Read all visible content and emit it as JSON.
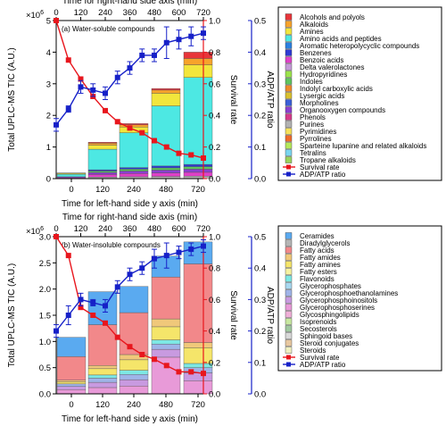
{
  "chart_data": [
    {
      "type": "bar",
      "panel_label": "(a) Water-soluble compounds",
      "xlabel_bottom": "Time for left-hand side y axis (min)",
      "xlabel_top": "Time for right-hand side axis (min)",
      "ylabel_left": "Total UPLC-MS TIC (A.U.)",
      "ylabel_right_1": "Survival rate",
      "ylabel_right_2": "ADP/ATP ratio",
      "y_exponent": "×10",
      "y_exponent_power": "6",
      "ylim_left": [
        0,
        5000000
      ],
      "ylim_survival": [
        0,
        1.0
      ],
      "ylim_adp": [
        0,
        0.5
      ],
      "xlim_top": [
        0,
        720
      ],
      "categories": [
        "0",
        "120",
        "240",
        "480",
        "720"
      ],
      "left_ticks": [
        "0",
        "1",
        "2",
        "3",
        "4",
        "5"
      ],
      "survival_ticks": [
        "0.0",
        "0.2",
        "0.4",
        "0.6",
        "0.8",
        "1.0"
      ],
      "adp_ticks": [
        "0.0",
        "0.1",
        "0.2",
        "0.3",
        "0.4",
        "0.5"
      ],
      "top_ticks": [
        "0",
        "120",
        "240",
        "360",
        "480",
        "600",
        "720"
      ],
      "legend": [
        {
          "name": "Alcohols and polyols",
          "color": "#e8353a"
        },
        {
          "name": "Alkaloids",
          "color": "#f7a32b"
        },
        {
          "name": "Amines",
          "color": "#f2e63c"
        },
        {
          "name": "Amino acids and peptides",
          "color": "#4de8e3"
        },
        {
          "name": "Aromatic heteropolycyclic compounds",
          "color": "#2a7fe0"
        },
        {
          "name": "Benzenes",
          "color": "#2d3bd4"
        },
        {
          "name": "Benzoic acids",
          "color": "#e040c8"
        },
        {
          "name": "Delta valerolactones",
          "color": "#c49ad8"
        },
        {
          "name": "Hydropyridines",
          "color": "#9be34a"
        },
        {
          "name": "Indoles",
          "color": "#5ec45e"
        },
        {
          "name": "Indolyl carboxylic acids",
          "color": "#ee8a2a"
        },
        {
          "name": "Lysergic acids",
          "color": "#d9c02e"
        },
        {
          "name": "Morpholines",
          "color": "#3a5fd8"
        },
        {
          "name": "Organooxygen compounds",
          "color": "#8a3fd0"
        },
        {
          "name": "Phenols",
          "color": "#d63a8a"
        },
        {
          "name": "Purines",
          "color": "#b2b2b2"
        },
        {
          "name": "Pyrimidines",
          "color": "#f5e15a"
        },
        {
          "name": "Pyrrolines",
          "color": "#f06a2a"
        },
        {
          "name": "Sparteine lupanine and related alkaloids",
          "color": "#b5e85a"
        },
        {
          "name": "Tetralins",
          "color": "#7ad6f0"
        },
        {
          "name": "Tropane alkaloids",
          "color": "#9ad35a"
        },
        {
          "name": "Survival rate",
          "color": "#e8161d",
          "line": true,
          "marker": "circle"
        },
        {
          "name": "ADP/ATP ratio",
          "color": "#1620c8",
          "line": true,
          "marker": "square"
        }
      ],
      "stacks": [
        [
          {
            "c": "#e040c8",
            "v": 30000
          },
          {
            "c": "#8a3fd0",
            "v": 30000
          },
          {
            "c": "#4de8e3",
            "v": 80000
          },
          {
            "c": "#f2e63c",
            "v": 30000
          },
          {
            "c": "#f7a32b",
            "v": 10000
          }
        ],
        [
          {
            "c": "#b2b2b2",
            "v": 50000
          },
          {
            "c": "#e040c8",
            "v": 80000
          },
          {
            "c": "#8a3fd0",
            "v": 60000
          },
          {
            "c": "#5ec45e",
            "v": 50000
          },
          {
            "c": "#2d3bd4",
            "v": 40000
          },
          {
            "c": "#4de8e3",
            "v": 650000
          },
          {
            "c": "#f2e63c",
            "v": 130000
          },
          {
            "c": "#f7a32b",
            "v": 60000
          },
          {
            "c": "#e8353a",
            "v": 30000
          }
        ],
        [
          {
            "c": "#b2b2b2",
            "v": 60000
          },
          {
            "c": "#e040c8",
            "v": 100000
          },
          {
            "c": "#8a3fd0",
            "v": 80000
          },
          {
            "c": "#5ec45e",
            "v": 60000
          },
          {
            "c": "#2d3bd4",
            "v": 50000
          },
          {
            "c": "#4de8e3",
            "v": 1100000
          },
          {
            "c": "#f2e63c",
            "v": 180000
          },
          {
            "c": "#f7a32b",
            "v": 70000
          },
          {
            "c": "#e8353a",
            "v": 40000
          }
        ],
        [
          {
            "c": "#b2b2b2",
            "v": 70000
          },
          {
            "c": "#e040c8",
            "v": 110000
          },
          {
            "c": "#8a3fd0",
            "v": 90000
          },
          {
            "c": "#5ec45e",
            "v": 70000
          },
          {
            "c": "#2d3bd4",
            "v": 60000
          },
          {
            "c": "#4de8e3",
            "v": 1900000
          },
          {
            "c": "#f2e63c",
            "v": 400000
          },
          {
            "c": "#f7a32b",
            "v": 100000
          },
          {
            "c": "#e8353a",
            "v": 50000
          }
        ],
        [
          {
            "c": "#b2b2b2",
            "v": 80000
          },
          {
            "c": "#e040c8",
            "v": 120000
          },
          {
            "c": "#8a3fd0",
            "v": 100000
          },
          {
            "c": "#5ec45e",
            "v": 80000
          },
          {
            "c": "#2d3bd4",
            "v": 70000
          },
          {
            "c": "#4de8e3",
            "v": 2750000
          },
          {
            "c": "#f2e63c",
            "v": 400000
          },
          {
            "c": "#f7a32b",
            "v": 200000
          },
          {
            "c": "#e8353a",
            "v": 200000
          }
        ]
      ],
      "survival": {
        "x": [
          0,
          60,
          120,
          180,
          240,
          300,
          360,
          420,
          480,
          540,
          600,
          660,
          720
        ],
        "y": [
          1.0,
          0.75,
          0.63,
          0.52,
          0.43,
          0.36,
          0.32,
          0.29,
          0.24,
          0.2,
          0.16,
          0.15,
          0.13
        ]
      },
      "adp": {
        "x": [
          0,
          60,
          120,
          180,
          240,
          300,
          360,
          420,
          480,
          540,
          600,
          660,
          720
        ],
        "y": [
          0.17,
          0.22,
          0.29,
          0.28,
          0.27,
          0.32,
          0.35,
          0.39,
          0.39,
          0.43,
          0.44,
          0.45,
          0.46
        ],
        "err": [
          0.02,
          0.01,
          0.02,
          0.02,
          0.02,
          0.02,
          0.02,
          0.02,
          0.02,
          0.05,
          0.03,
          0.03,
          0.02
        ]
      }
    },
    {
      "type": "bar",
      "panel_label": "(b) Water-insoluble compounds",
      "xlabel_bottom": "Time for left-hand side y axis (min)",
      "xlabel_top": "Time for right-hand side axis (min)",
      "ylabel_left": "Total UPLC-MS TIC (A.U.)",
      "ylabel_right_1": "Survival rate",
      "ylabel_right_2": "ADP/ATP ratio",
      "y_exponent": "×10",
      "y_exponent_power": "6",
      "ylim_left": [
        0,
        3000000
      ],
      "ylim_survival": [
        0,
        1.0
      ],
      "ylim_adp": [
        0,
        0.5
      ],
      "xlim_top": [
        0,
        720
      ],
      "categories": [
        "0",
        "120",
        "240",
        "480",
        "720"
      ],
      "left_ticks": [
        "0.0",
        "0.5",
        "1.0",
        "1.5",
        "2.0",
        "2.5",
        "3.0"
      ],
      "survival_ticks": [
        "0.0",
        "0.2",
        "0.4",
        "0.6",
        "0.8",
        "1.0"
      ],
      "adp_ticks": [
        "0.0",
        "0.1",
        "0.2",
        "0.3",
        "0.4",
        "0.5"
      ],
      "top_ticks": [
        "0",
        "120",
        "240",
        "360",
        "480",
        "600",
        "720"
      ],
      "legend": [
        {
          "name": "Ceramides",
          "color": "#5aaaf0"
        },
        {
          "name": "Diradylglycerols",
          "color": "#b5b5b5"
        },
        {
          "name": "Fatty acids",
          "color": "#f2888a"
        },
        {
          "name": "Fatty amides",
          "color": "#f0c87a"
        },
        {
          "name": "Fatty amines",
          "color": "#f5e56a"
        },
        {
          "name": "Fatty esters",
          "color": "#f7f2a0"
        },
        {
          "name": "Flavonoids",
          "color": "#7de8e4"
        },
        {
          "name": "Glycerophosphates",
          "color": "#a8d8f0"
        },
        {
          "name": "Glycerophosphoethanolamines",
          "color": "#9fb4e8"
        },
        {
          "name": "Glycerophosphoinositols",
          "color": "#c89ae0"
        },
        {
          "name": "Glycerophosphoserines",
          "color": "#e89ad8"
        },
        {
          "name": "Glycosphingolipids",
          "color": "#f0b0d8"
        },
        {
          "name": "Isoprenoids",
          "color": "#c8e8a0"
        },
        {
          "name": "Secosterols",
          "color": "#a0c8a0"
        },
        {
          "name": "Sphingoid bases",
          "color": "#d8d8d8"
        },
        {
          "name": "Steroid conjugates",
          "color": "#e8c8a0"
        },
        {
          "name": "Steroids",
          "color": "#f0f0c0"
        },
        {
          "name": "Survival rate",
          "color": "#e8161d",
          "line": true,
          "marker": "circle"
        },
        {
          "name": "ADP/ATP ratio",
          "color": "#1620c8",
          "line": true,
          "marker": "square"
        }
      ],
      "stacks": [
        [
          {
            "c": "#e89ad8",
            "v": 80000
          },
          {
            "c": "#c89ae0",
            "v": 60000
          },
          {
            "c": "#9fb4e8",
            "v": 50000
          },
          {
            "c": "#f5e56a",
            "v": 40000
          },
          {
            "c": "#f0c87a",
            "v": 30000
          },
          {
            "c": "#f2888a",
            "v": 450000
          },
          {
            "c": "#5aaaf0",
            "v": 370000
          }
        ],
        [
          {
            "c": "#e89ad8",
            "v": 120000
          },
          {
            "c": "#c89ae0",
            "v": 100000
          },
          {
            "c": "#9fb4e8",
            "v": 80000
          },
          {
            "c": "#7de8e4",
            "v": 60000
          },
          {
            "c": "#f5e56a",
            "v": 120000
          },
          {
            "c": "#f0c87a",
            "v": 60000
          },
          {
            "c": "#f2888a",
            "v": 780000
          },
          {
            "c": "#5aaaf0",
            "v": 630000
          }
        ],
        [
          {
            "c": "#e89ad8",
            "v": 150000
          },
          {
            "c": "#c89ae0",
            "v": 120000
          },
          {
            "c": "#9fb4e8",
            "v": 100000
          },
          {
            "c": "#7de8e4",
            "v": 80000
          },
          {
            "c": "#f5e56a",
            "v": 200000
          },
          {
            "c": "#f0c87a",
            "v": 100000
          },
          {
            "c": "#f2888a",
            "v": 800000
          },
          {
            "c": "#5aaaf0",
            "v": 500000
          }
        ],
        [
          {
            "c": "#e89ad8",
            "v": 700000
          },
          {
            "c": "#c89ae0",
            "v": 150000
          },
          {
            "c": "#9fb4e8",
            "v": 100000
          },
          {
            "c": "#7de8e4",
            "v": 80000
          },
          {
            "c": "#f5e56a",
            "v": 250000
          },
          {
            "c": "#f0c87a",
            "v": 150000
          },
          {
            "c": "#f2888a",
            "v": 800000
          },
          {
            "c": "#5aaaf0",
            "v": 400000
          }
        ],
        [
          {
            "c": "#e89ad8",
            "v": 250000
          },
          {
            "c": "#c89ae0",
            "v": 150000
          },
          {
            "c": "#9fb4e8",
            "v": 100000
          },
          {
            "c": "#7de8e4",
            "v": 80000
          },
          {
            "c": "#f5e56a",
            "v": 300000
          },
          {
            "c": "#f0c87a",
            "v": 100000
          },
          {
            "c": "#f2888a",
            "v": 1500000
          },
          {
            "c": "#5aaaf0",
            "v": 420000
          }
        ]
      ],
      "survival": {
        "x": [
          0,
          60,
          120,
          180,
          240,
          300,
          360,
          420,
          480,
          540,
          600,
          660,
          720
        ],
        "y": [
          1.0,
          0.88,
          0.55,
          0.5,
          0.45,
          0.36,
          0.3,
          0.25,
          0.22,
          0.18,
          0.14,
          0.14,
          0.13
        ]
      },
      "adp": {
        "x": [
          0,
          60,
          120,
          180,
          240,
          300,
          360,
          420,
          480,
          540,
          600,
          660,
          720
        ],
        "y": [
          0.2,
          0.25,
          0.3,
          0.29,
          0.28,
          0.34,
          0.38,
          0.4,
          0.43,
          0.44,
          0.45,
          0.46,
          0.47
        ],
        "err": [
          0.02,
          0.03,
          0.02,
          0.01,
          0.02,
          0.02,
          0.02,
          0.02,
          0.03,
          0.04,
          0.02,
          0.02,
          0.02
        ]
      }
    }
  ]
}
